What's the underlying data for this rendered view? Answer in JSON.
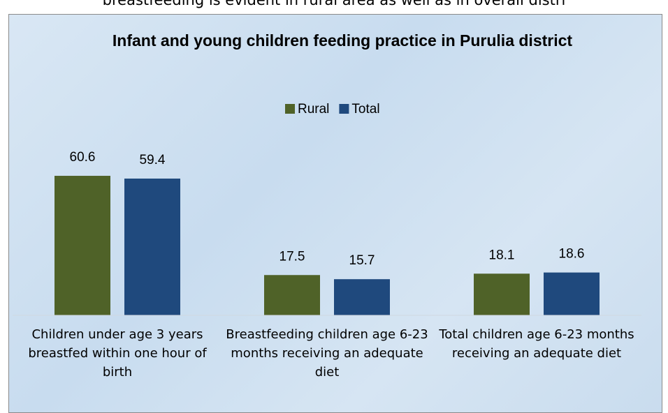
{
  "page_text": "breastfeeding is evident in rural area as well as in overall distri",
  "chart_data": {
    "type": "bar",
    "title": "Infant and young children feeding practice in Purulia district",
    "categories": [
      "Children under age 3 years breastfed within one hour of birth",
      "Breastfeeding children age 6-23 months receiving an adequate diet",
      "Total children age 6-23 months receiving an adequate diet"
    ],
    "series": [
      {
        "name": "Rural",
        "color": "#4f6228",
        "values": [
          60.6,
          17.5,
          18.1
        ]
      },
      {
        "name": "Total",
        "color": "#1f497d",
        "values": [
          59.4,
          15.7,
          18.6
        ]
      }
    ],
    "ylim": [
      0,
      70
    ],
    "legend": "top"
  }
}
